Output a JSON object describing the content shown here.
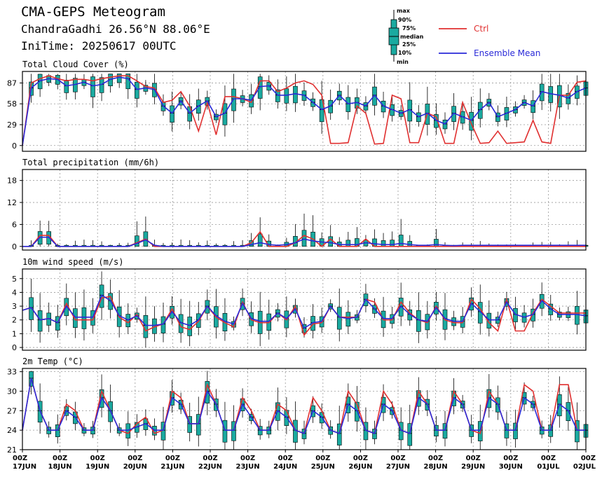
{
  "header": {
    "title": "CMA-GEPS Meteogram",
    "location": "ChandraGadhi 26.56°N 88.06°E",
    "init": "IniTime: 20250617 00UTC"
  },
  "legend": {
    "box_labels": [
      "max",
      "90%",
      "75%",
      "median",
      "25%",
      "10%",
      "min"
    ],
    "ctrl_label": "Ctrl",
    "mean_label": "Ensemble Mean",
    "ctrl_color": "#e03030",
    "mean_color": "#2a2ad8",
    "box_color": "#1aaaa0"
  },
  "x_axis": {
    "ticks": [
      [
        "00Z",
        "17JUN"
      ],
      [
        "00Z",
        "18JUN"
      ],
      [
        "00Z",
        "19JUN"
      ],
      [
        "00Z",
        "20JUN"
      ],
      [
        "00Z",
        "21JUN"
      ],
      [
        "00Z",
        "22JUN"
      ],
      [
        "00Z",
        "23JUN"
      ],
      [
        "00Z",
        "24JUN"
      ],
      [
        "00Z",
        "25JUN"
      ],
      [
        "00Z",
        "26JUN"
      ],
      [
        "00Z",
        "27JUN"
      ],
      [
        "00Z",
        "28JUN"
      ],
      [
        "00Z",
        "29JUN"
      ],
      [
        "00Z",
        "30JUN"
      ],
      [
        "00Z",
        "01JUL"
      ],
      [
        "00Z",
        "02JUL"
      ]
    ],
    "step_hours": 6
  },
  "chart_data": [
    {
      "type": "line",
      "title": "Total Cloud Cover (%)",
      "ylim": [
        -8,
        103
      ],
      "yticks": [
        0,
        29,
        58,
        87
      ],
      "grid": true,
      "series": [
        {
          "name": "Ctrl",
          "values": [
            0,
            87,
            93,
            97,
            93,
            90,
            92,
            92,
            90,
            93,
            95,
            97,
            97,
            90,
            82,
            80,
            60,
            63,
            75,
            55,
            20,
            60,
            15,
            68,
            68,
            65,
            60,
            90,
            90,
            75,
            80,
            87,
            90,
            85,
            70,
            3,
            3,
            4,
            55,
            45,
            2,
            3,
            70,
            65,
            4,
            4,
            45,
            40,
            3,
            3,
            60,
            30,
            3,
            4,
            20,
            3,
            4,
            5,
            35,
            5,
            3,
            70,
            70,
            88,
            90
          ]
        },
        {
          "name": "Ensemble Mean",
          "values": [
            0,
            80,
            90,
            93,
            92,
            83,
            85,
            88,
            83,
            85,
            92,
            95,
            93,
            78,
            80,
            78,
            55,
            45,
            62,
            45,
            55,
            62,
            40,
            45,
            65,
            65,
            63,
            82,
            83,
            70,
            70,
            72,
            70,
            60,
            50,
            55,
            70,
            58,
            60,
            55,
            70,
            55,
            50,
            45,
            50,
            40,
            45,
            35,
            30,
            45,
            40,
            35,
            50,
            60,
            40,
            45,
            50,
            60,
            55,
            75,
            72,
            70,
            66,
            75,
            80
          ]
        }
      ],
      "box_count": 64
    },
    {
      "type": "line",
      "title": "Total precipitation (mm/6h)",
      "ylim": [
        -1,
        21
      ],
      "yticks": [
        0,
        6,
        12,
        18
      ],
      "grid": true,
      "series": [
        {
          "name": "Ctrl",
          "values": [
            0,
            0,
            3,
            3,
            0,
            0,
            0,
            0,
            0,
            0,
            0,
            0,
            0,
            1,
            2,
            0,
            0,
            0,
            0,
            0,
            0,
            0,
            0,
            0,
            0,
            0,
            1,
            4,
            0,
            0,
            0,
            1,
            3,
            2,
            0,
            2,
            0,
            0,
            0,
            2,
            0,
            0,
            0,
            0,
            0,
            0,
            0,
            0,
            0,
            0,
            0,
            0,
            0,
            0,
            0,
            0,
            0,
            0,
            0,
            0,
            0,
            0,
            0,
            0,
            0
          ]
        },
        {
          "name": "Ensemble Mean",
          "values": [
            0,
            0,
            2.5,
            2.5,
            0,
            0,
            0,
            0,
            0,
            0,
            0,
            0,
            0,
            0.8,
            1.8,
            0.3,
            0,
            0,
            0,
            0,
            0,
            0,
            0,
            0,
            0,
            0,
            0.5,
            1,
            0.5,
            0.3,
            0.5,
            1,
            2,
            1.5,
            1.2,
            1,
            0.5,
            0.5,
            0.5,
            1,
            0.7,
            0.5,
            0.5,
            0.8,
            0.5,
            0.3,
            0.3,
            0.5,
            0.3,
            0.2,
            0.3,
            0.3,
            0.3,
            0.3,
            0.3,
            0.3,
            0.3,
            0.3,
            0.3,
            0.3,
            0.3,
            0.3,
            0.3,
            0.3,
            0.3
          ]
        }
      ],
      "box_count": 64
    },
    {
      "type": "line",
      "title": "10m wind speed (m/s)",
      "ylim": [
        -0.2,
        5.7
      ],
      "yticks": [
        0,
        1,
        2,
        3,
        4,
        5
      ],
      "grid": true,
      "series": [
        {
          "name": "Ctrl",
          "values": [
            2.7,
            2.9,
            2.0,
            2.1,
            1.8,
            3.2,
            2.0,
            2.0,
            2.0,
            3.6,
            3.7,
            2.2,
            1.8,
            2.4,
            1.2,
            1.5,
            1.7,
            2.8,
            1.5,
            1.3,
            1.9,
            3.0,
            2.2,
            1.8,
            1.5,
            3.3,
            2.0,
            1.8,
            1.8,
            2.5,
            2.0,
            3.0,
            0.9,
            1.7,
            1.8,
            3.0,
            2.2,
            2.2,
            2.2,
            3.5,
            3.3,
            2.0,
            2.0,
            3.3,
            2.5,
            2.0,
            1.8,
            3.0,
            2.0,
            1.8,
            1.8,
            3.5,
            2.8,
            1.8,
            1.2,
            3.5,
            1.2,
            1.2,
            2.5,
            3.5,
            3.0,
            2.5,
            2.5,
            2.5,
            2.5
          ]
        },
        {
          "name": "Ensemble Mean",
          "values": [
            2.7,
            2.9,
            2.0,
            2.1,
            1.8,
            3.0,
            2.2,
            2.2,
            2.2,
            3.8,
            3.4,
            2.3,
            2.0,
            2.3,
            1.6,
            1.6,
            1.7,
            2.6,
            1.8,
            1.6,
            2.0,
            3.0,
            2.3,
            1.9,
            1.7,
            3.2,
            2.1,
            1.9,
            1.9,
            2.5,
            2.1,
            2.8,
            1.4,
            1.8,
            1.9,
            3.0,
            2.2,
            2.1,
            2.2,
            3.5,
            2.8,
            2.1,
            2.1,
            3.0,
            2.4,
            2.0,
            1.9,
            2.9,
            2.1,
            1.9,
            1.9,
            3.2,
            2.6,
            2.0,
            2.0,
            3.3,
            2.4,
            2.2,
            2.4,
            3.4,
            2.8,
            2.4,
            2.4,
            2.4,
            2.3
          ]
        }
      ],
      "box_count": 64
    },
    {
      "type": "line",
      "title": "2m Temp (°C)",
      "ylim": [
        21,
        33.5
      ],
      "yticks": [
        21,
        24,
        27,
        30,
        33
      ],
      "grid": true,
      "series": [
        {
          "name": "Ctrl",
          "values": [
            24,
            32,
            27,
            24,
            24,
            28,
            27,
            24,
            24,
            30,
            27,
            24,
            23.5,
            25,
            26,
            23.5,
            24,
            30,
            29,
            25,
            25,
            31,
            28,
            24,
            24,
            29,
            27,
            24,
            24,
            28,
            27,
            24,
            23.5,
            29,
            27,
            24,
            23.5,
            30,
            28,
            24,
            23.5,
            30,
            28,
            24,
            23.5,
            30,
            28,
            24,
            24,
            30,
            28,
            24,
            23.5,
            30,
            28,
            24,
            24,
            31,
            30,
            24,
            24,
            31,
            31,
            24,
            24
          ]
        },
        {
          "name": "Ensemble Mean",
          "values": [
            24,
            32,
            27,
            24,
            24,
            27,
            26,
            24,
            24,
            29,
            27,
            24,
            24,
            24.5,
            25,
            24,
            24,
            29,
            28,
            25,
            25,
            30,
            28,
            24,
            24,
            28,
            26,
            24,
            24,
            27,
            26,
            24,
            23.5,
            27,
            26,
            24,
            23.5,
            28,
            27,
            24,
            23.5,
            28,
            27,
            24,
            23.5,
            29,
            28,
            24,
            24,
            29,
            28,
            24,
            24,
            29,
            28,
            24,
            24,
            29,
            28,
            24,
            24,
            28,
            27,
            24,
            24
          ]
        }
      ],
      "box_count": 64
    }
  ]
}
